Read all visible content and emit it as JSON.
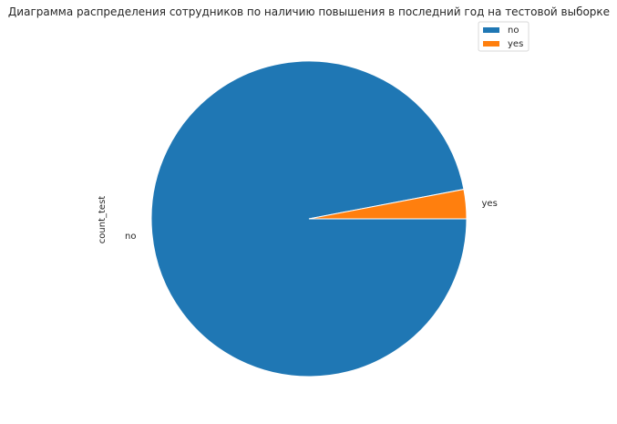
{
  "chart_data": {
    "type": "pie",
    "title": "Диаграмма распределения сотрудников по наличию повышения в последний год на тестовой выборке",
    "ylabel": "count_test",
    "categories": [
      "no",
      "yes"
    ],
    "values": [
      97,
      3
    ],
    "colors": [
      "#1f77b4",
      "#ff7f0e"
    ],
    "start_angle_deg": 0,
    "legend": {
      "position": "top-right",
      "entries": [
        "no",
        "yes"
      ]
    }
  }
}
